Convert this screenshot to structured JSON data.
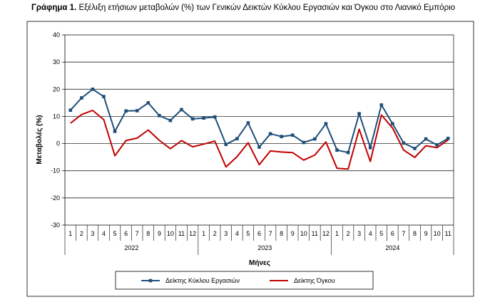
{
  "title": {
    "prefix": "Γράφημα 1.",
    "text": "Εξέλιξη ετήσιων μεταβολών (%) των Γενικών Δεικτών Κύκλου Εργασιών και Όγκου στο Λιανικό Εμπόριο"
  },
  "chart_data": {
    "type": "line",
    "ylabel": "Μεταβολές (%)",
    "xlabel": "Μήνες",
    "ylim": [
      -30,
      40
    ],
    "yticks": [
      40,
      30,
      20,
      10,
      0,
      -10,
      -20,
      -30
    ],
    "grid": true,
    "legend_position": "bottom",
    "x": [
      "1",
      "2",
      "3",
      "4",
      "5",
      "6",
      "7",
      "8",
      "9",
      "10",
      "11",
      "12",
      "1",
      "2",
      "3",
      "4",
      "5",
      "6",
      "7",
      "8",
      "9",
      "10",
      "11",
      "12",
      "1",
      "2",
      "3",
      "4",
      "5",
      "6",
      "7",
      "8",
      "9",
      "10",
      "11"
    ],
    "years": [
      {
        "label": "2022",
        "months": 12
      },
      {
        "label": "2023",
        "months": 12
      },
      {
        "label": "2024",
        "months": 11
      }
    ],
    "series": [
      {
        "name": "Δείκτης Κύκλου Εργασιών",
        "color": "#1f4e79",
        "marker": "square",
        "values": [
          12.3,
          16.8,
          20.0,
          17.3,
          4.5,
          12.0,
          12.1,
          15.0,
          10.3,
          8.5,
          12.5,
          9.1,
          9.4,
          9.8,
          -0.3,
          1.8,
          7.6,
          -1.3,
          3.6,
          2.6,
          3.1,
          0.4,
          1.7,
          7.3,
          -2.4,
          -3.3,
          11.0,
          -1.5,
          14.2,
          7.3,
          0.2,
          -1.8,
          1.7,
          -0.5,
          1.9
        ]
      },
      {
        "name": "Δείκτης Όγκου",
        "color": "#c00000",
        "marker": "none",
        "values": [
          7.5,
          10.7,
          12.2,
          8.8,
          -4.5,
          1.1,
          2.0,
          5.0,
          1.2,
          -1.9,
          1.1,
          -1.2,
          -0.2,
          0.9,
          -8.6,
          -4.8,
          0.3,
          -7.8,
          -2.7,
          -3.1,
          -3.3,
          -6.1,
          -4.2,
          0.6,
          -9.1,
          -9.4,
          5.3,
          -6.6,
          10.5,
          5.7,
          -2.4,
          -5.1,
          -0.8,
          -1.5,
          1.3
        ]
      }
    ]
  }
}
